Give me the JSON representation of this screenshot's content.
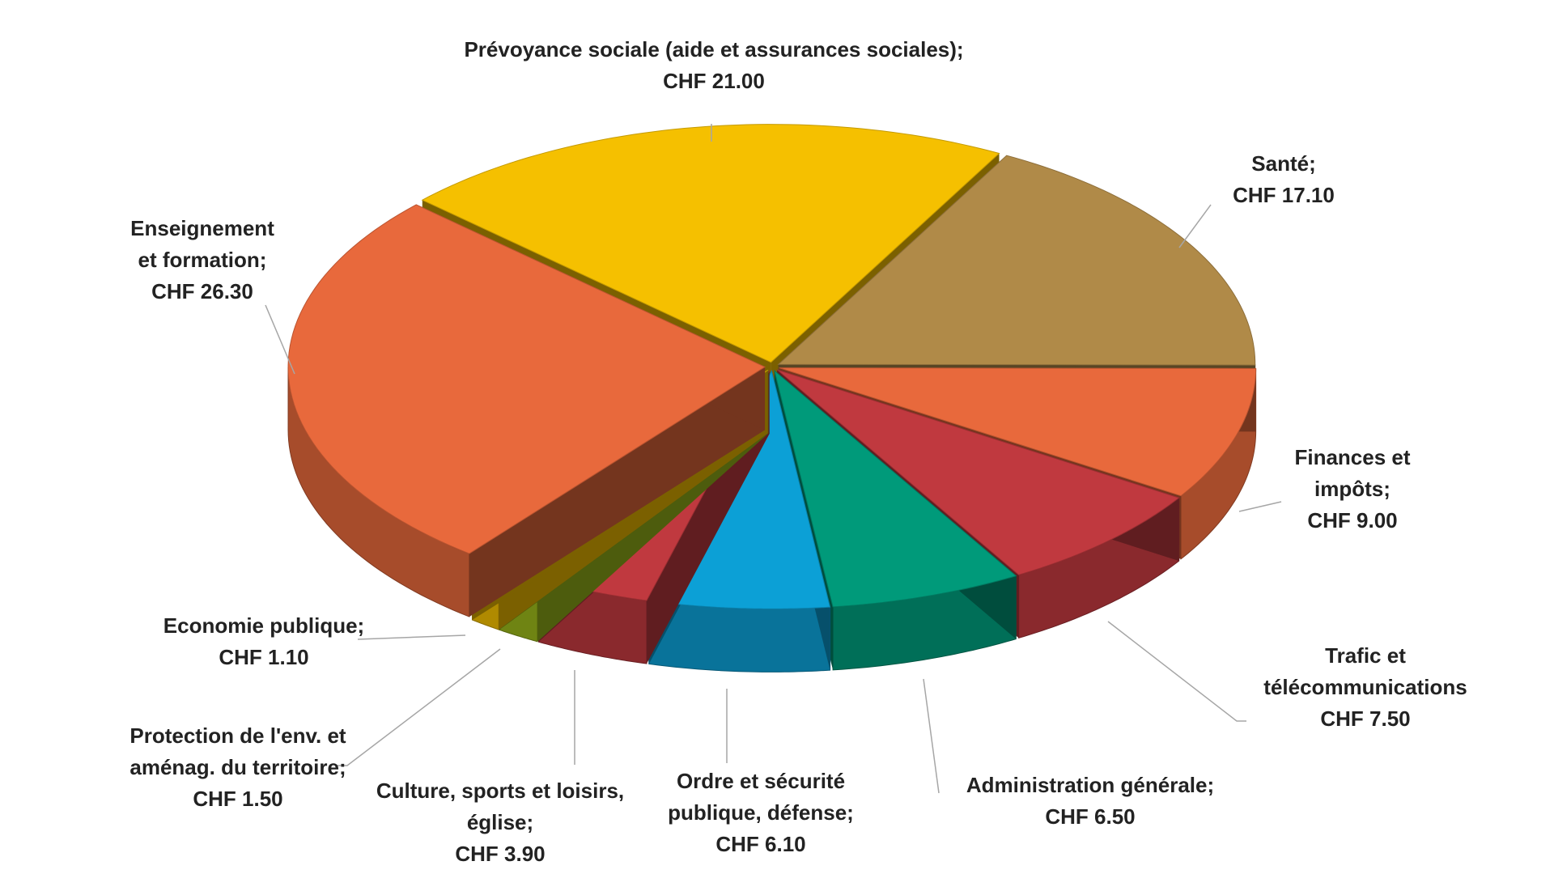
{
  "chart_data": {
    "type": "pie3d",
    "categories": [
      "Prévoyance sociale (aide et assurances sociales);",
      "Santé;",
      "Finances et impôts;",
      "Trafic et télécommunications",
      "Administration générale;",
      "Ordre et sécurité publique, défense;",
      "Culture, sports et loisirs, église;",
      "Protection de l'env. et aménag. du territoire;",
      "Economie publique;",
      "Enseignement et formation;"
    ],
    "values": [
      21.0,
      17.1,
      9.0,
      7.5,
      6.5,
      6.1,
      3.9,
      1.5,
      1.1,
      26.3
    ],
    "value_labels": [
      "CHF 21.00",
      "CHF 17.10",
      "CHF 9.00",
      "CHF 7.50",
      "CHF 6.50",
      "CHF 6.10",
      "CHF 3.90",
      "CHF 1.50",
      "CHF 1.10",
      "CHF 26.30"
    ],
    "colors": [
      "#f5c000",
      "#b08a48",
      "#e8693c",
      "#c0393f",
      "#009a7a",
      "#0ca0d6",
      "#c0393f",
      "#9ab81a",
      "#f5c000",
      "#e8693c"
    ]
  }
}
